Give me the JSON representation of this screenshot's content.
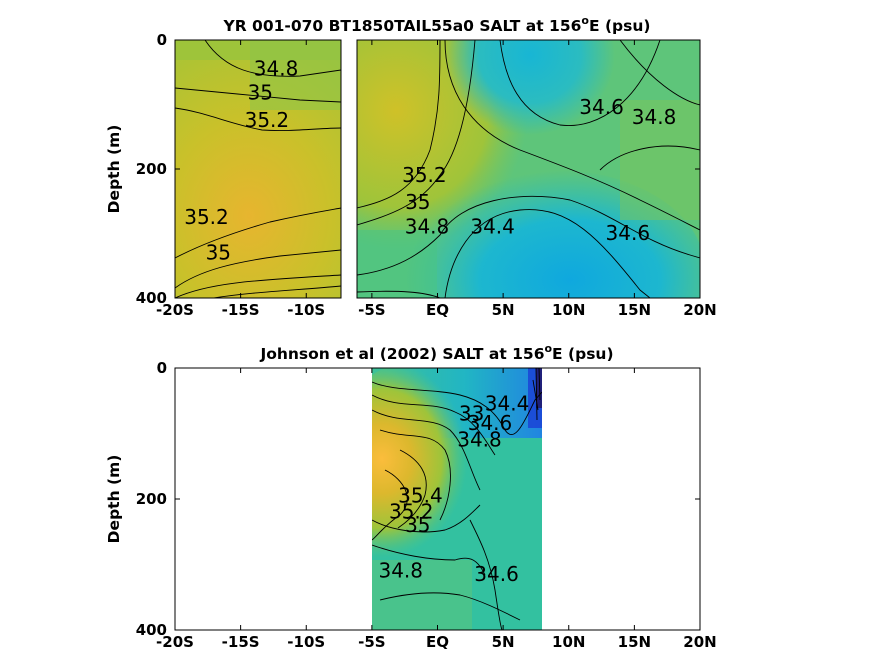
{
  "chart_data": [
    {
      "type": "heatmap",
      "title": "YR 001-070 BT1850TAIL55a0 SALT at 156",
      "title_sup": "o",
      "title_tail": "E (psu)",
      "ylabel": "Depth (m)",
      "xlim": [
        -20,
        20
      ],
      "ylim": [
        400,
        0
      ],
      "x_tick_values": [
        -20,
        -15,
        -10,
        -5,
        0,
        5,
        10,
        15,
        20
      ],
      "x_tick_labels": [
        "-20S",
        "-15S",
        "-10S",
        "-5S",
        "EQ",
        "5N",
        "10N",
        "15N",
        "20N"
      ],
      "y_tick_values": [
        0,
        200,
        400
      ],
      "y_tick_labels": [
        "0",
        "200",
        "400"
      ],
      "data_gap_latitude": [
        -7.2,
        -6.6
      ],
      "contour_labels": [
        {
          "text": "34.8",
          "lat": -12.3,
          "depth": 55
        },
        {
          "text": "35",
          "lat": -13.5,
          "depth": 92
        },
        {
          "text": "35.2",
          "lat": -13.0,
          "depth": 135
        },
        {
          "text": "35.2",
          "lat": -17.6,
          "depth": 285
        },
        {
          "text": "35",
          "lat": -16.7,
          "depth": 340
        },
        {
          "text": "35.2",
          "lat": -1.0,
          "depth": 220
        },
        {
          "text": "35",
          "lat": -1.5,
          "depth": 262
        },
        {
          "text": "34.8",
          "lat": -0.8,
          "depth": 300
        },
        {
          "text": "34.4",
          "lat": 4.2,
          "depth": 300
        },
        {
          "text": "34.6",
          "lat": 12.5,
          "depth": 115
        },
        {
          "text": "34.8",
          "lat": 16.5,
          "depth": 130
        },
        {
          "text": "34.6",
          "lat": 14.5,
          "depth": 310
        }
      ],
      "colormap": "parula",
      "color_range_psu": [
        34.2,
        35.6
      ]
    },
    {
      "type": "heatmap",
      "title": "Johnson et al (2002) SALT at 156",
      "title_sup": "o",
      "title_tail": "E (psu)",
      "ylabel": "Depth (m)",
      "xlim": [
        -20,
        20
      ],
      "ylim": [
        400,
        0
      ],
      "x_tick_values": [
        -20,
        -15,
        -10,
        -5,
        0,
        5,
        10,
        15,
        20
      ],
      "x_tick_labels": [
        "-20S",
        "-15S",
        "-10S",
        "-5S",
        "EQ",
        "5N",
        "10N",
        "15N",
        "20N"
      ],
      "y_tick_values": [
        0,
        200,
        400
      ],
      "y_tick_labels": [
        "0",
        "200",
        "400"
      ],
      "data_extent_latitude": [
        -5,
        8
      ],
      "contour_labels": [
        {
          "text": "34.4",
          "lat": 5.3,
          "depth": 65
        },
        {
          "text": "34.6",
          "lat": 4.0,
          "depth": 95
        },
        {
          "text": "34.8",
          "lat": 3.2,
          "depth": 120
        },
        {
          "text": "33",
          "lat": 2.6,
          "depth": 80
        },
        {
          "text": "35.4",
          "lat": -1.3,
          "depth": 205
        },
        {
          "text": "35.2",
          "lat": -2.0,
          "depth": 230
        },
        {
          "text": "35",
          "lat": -1.5,
          "depth": 250
        },
        {
          "text": "34.8",
          "lat": -2.8,
          "depth": 320
        },
        {
          "text": "34.6",
          "lat": 4.5,
          "depth": 325
        }
      ],
      "colormap": "parula",
      "color_range_psu": [
        34.2,
        35.6
      ]
    }
  ]
}
